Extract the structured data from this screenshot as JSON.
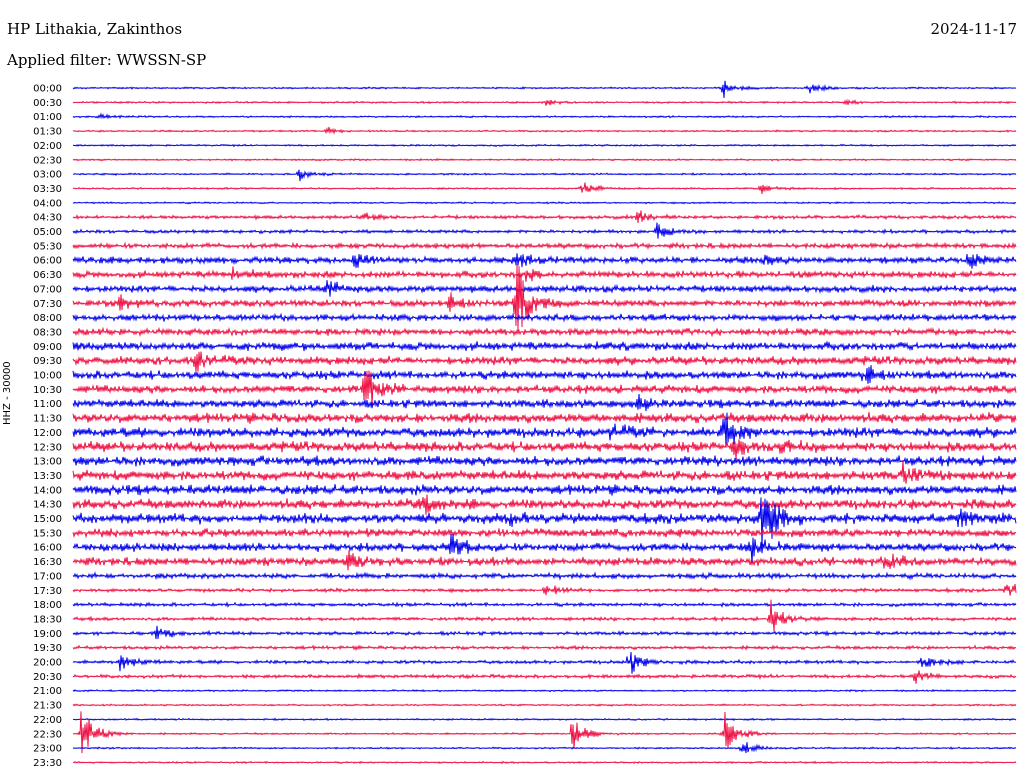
{
  "header": {
    "station": "HP Lithakia, Zakinthos",
    "date": "2024-11-17",
    "filter": "Applied filter: WWSSN-SP"
  },
  "channel_label": "HHZ - 30000",
  "colors": {
    "trace_a": "#0000ee",
    "trace_b": "#ee1144",
    "text": "#000000"
  },
  "chart_data": {
    "type": "line",
    "title": "HP Lithakia, Zakinthos",
    "subtitle": "Applied filter: WWSSN-SP",
    "ylabel": "HHZ - 30000",
    "xlabel": "",
    "grid": false,
    "legend": "none",
    "y_tick_labels": [
      "00:00",
      "00:30",
      "01:00",
      "01:30",
      "02:00",
      "02:30",
      "03:00",
      "03:30",
      "04:00",
      "04:30",
      "05:00",
      "05:30",
      "06:00",
      "06:30",
      "07:00",
      "07:30",
      "08:00",
      "08:30",
      "09:00",
      "09:30",
      "10:00",
      "10:30",
      "11:00",
      "11:30",
      "12:00",
      "12:30",
      "13:00",
      "13:30",
      "14:00",
      "14:30",
      "15:00",
      "15:30",
      "16:00",
      "16:30",
      "17:00",
      "17:30",
      "18:00",
      "18:30",
      "19:00",
      "19:30",
      "20:00",
      "20:30",
      "21:00",
      "21:30",
      "22:00",
      "22:30",
      "23:00",
      "23:30"
    ],
    "trace_colors_cycle": [
      "#0000ee",
      "#ee1144"
    ],
    "noise_level": [
      1,
      1,
      1,
      1,
      1,
      1,
      1,
      1,
      1,
      2,
      2,
      3,
      4,
      4,
      4,
      4,
      4,
      4,
      5,
      5,
      5,
      5,
      5,
      6,
      6,
      6,
      6,
      6,
      6,
      6,
      6,
      5,
      5,
      5,
      3,
      2,
      2,
      2,
      2,
      2,
      2,
      2,
      1,
      1,
      1,
      1,
      1,
      1
    ],
    "events": [
      {
        "row": 0,
        "x": 0.69,
        "amp": 10
      },
      {
        "row": 0,
        "x": 0.78,
        "amp": 8
      },
      {
        "row": 1,
        "x": 0.5,
        "amp": 4
      },
      {
        "row": 1,
        "x": 0.82,
        "amp": 3
      },
      {
        "row": 2,
        "x": 0.03,
        "amp": 4
      },
      {
        "row": 3,
        "x": 0.27,
        "amp": 4
      },
      {
        "row": 6,
        "x": 0.24,
        "amp": 8
      },
      {
        "row": 7,
        "x": 0.54,
        "amp": 10
      },
      {
        "row": 7,
        "x": 0.73,
        "amp": 7
      },
      {
        "row": 9,
        "x": 0.31,
        "amp": 4
      },
      {
        "row": 9,
        "x": 0.6,
        "amp": 8
      },
      {
        "row": 10,
        "x": 0.62,
        "amp": 10
      },
      {
        "row": 12,
        "x": 0.3,
        "amp": 10
      },
      {
        "row": 12,
        "x": 0.47,
        "amp": 9
      },
      {
        "row": 12,
        "x": 0.73,
        "amp": 9
      },
      {
        "row": 12,
        "x": 0.95,
        "amp": 10
      },
      {
        "row": 13,
        "x": 0.17,
        "amp": 9
      },
      {
        "row": 13,
        "x": 0.48,
        "amp": 9
      },
      {
        "row": 14,
        "x": 0.27,
        "amp": 10
      },
      {
        "row": 15,
        "x": 0.05,
        "amp": 12
      },
      {
        "row": 15,
        "x": 0.4,
        "amp": 10
      },
      {
        "row": 15,
        "x": 0.47,
        "amp": 70
      },
      {
        "row": 19,
        "x": 0.13,
        "amp": 18
      },
      {
        "row": 20,
        "x": 0.84,
        "amp": 12
      },
      {
        "row": 21,
        "x": 0.31,
        "amp": 30
      },
      {
        "row": 22,
        "x": 0.6,
        "amp": 10
      },
      {
        "row": 24,
        "x": 0.57,
        "amp": 12
      },
      {
        "row": 24,
        "x": 0.69,
        "amp": 22
      },
      {
        "row": 25,
        "x": 0.7,
        "amp": 14
      },
      {
        "row": 25,
        "x": 0.75,
        "amp": 10
      },
      {
        "row": 27,
        "x": 0.88,
        "amp": 12
      },
      {
        "row": 29,
        "x": 0.37,
        "amp": 12
      },
      {
        "row": 30,
        "x": 0.46,
        "amp": 10
      },
      {
        "row": 30,
        "x": 0.73,
        "amp": 50
      },
      {
        "row": 30,
        "x": 0.94,
        "amp": 12
      },
      {
        "row": 32,
        "x": 0.4,
        "amp": 18
      },
      {
        "row": 32,
        "x": 0.72,
        "amp": 18
      },
      {
        "row": 33,
        "x": 0.29,
        "amp": 12
      },
      {
        "row": 33,
        "x": 0.86,
        "amp": 10
      },
      {
        "row": 35,
        "x": 0.5,
        "amp": 10
      },
      {
        "row": 35,
        "x": 0.99,
        "amp": 10
      },
      {
        "row": 37,
        "x": 0.74,
        "amp": 22
      },
      {
        "row": 38,
        "x": 0.09,
        "amp": 10
      },
      {
        "row": 40,
        "x": 0.05,
        "amp": 14
      },
      {
        "row": 40,
        "x": 0.59,
        "amp": 16
      },
      {
        "row": 40,
        "x": 0.9,
        "amp": 10
      },
      {
        "row": 41,
        "x": 0.89,
        "amp": 10
      },
      {
        "row": 45,
        "x": 0.01,
        "amp": 40
      },
      {
        "row": 45,
        "x": 0.53,
        "amp": 22
      },
      {
        "row": 45,
        "x": 0.69,
        "amp": 30
      },
      {
        "row": 46,
        "x": 0.71,
        "amp": 8
      }
    ]
  }
}
